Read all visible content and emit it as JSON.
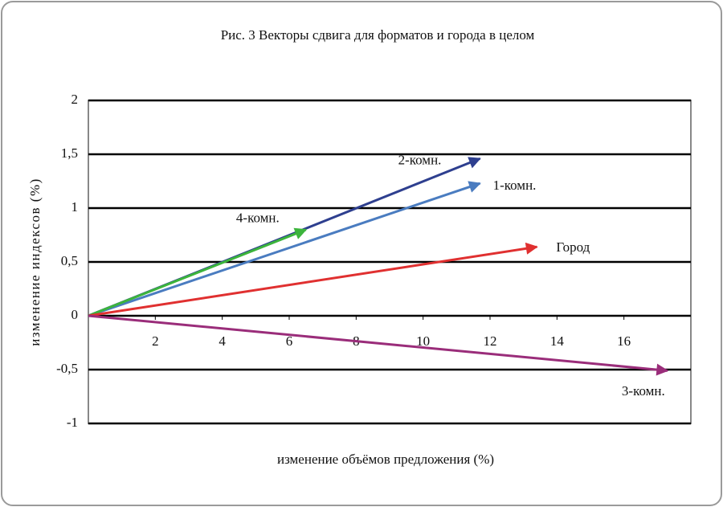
{
  "chart_data": {
    "type": "vector",
    "title": "Рис. 3 Векторы сдвига для форматов и города в целом",
    "x_label": "изменение объёмов предложения (%)",
    "y_label": "изменение индексов (%)",
    "xlim": [
      0,
      18
    ],
    "xticks": [
      2,
      4,
      6,
      8,
      10,
      12,
      14,
      16
    ],
    "ylim": [
      -1,
      2
    ],
    "yticks": [
      -1,
      {
        "value": -0.5,
        "label": "-0,5"
      },
      0,
      {
        "value": 0.5,
        "label": "0,5"
      },
      1,
      {
        "value": 1.5,
        "label": "1,5"
      },
      2
    ],
    "grid": true,
    "series": [
      {
        "name": "2-комн.",
        "color": "#2e3f8f",
        "x": [
          0,
          11.7
        ],
        "values": [
          0,
          1.46
        ]
      },
      {
        "name": "1-комн.",
        "color": "#4a7cc0",
        "x": [
          0,
          11.7
        ],
        "values": [
          0,
          1.23
        ]
      },
      {
        "name": "4-комн.",
        "color": "#3cb43c",
        "x": [
          0,
          6.5
        ],
        "values": [
          0,
          0.8
        ]
      },
      {
        "name": "Город",
        "color": "#e03030",
        "x": [
          0,
          13.4
        ],
        "values": [
          0,
          0.64
        ]
      },
      {
        "name": "3-комн.",
        "color": "#9a2d7a",
        "x": [
          0,
          17.3
        ],
        "values": [
          0,
          -0.51
        ]
      }
    ]
  }
}
